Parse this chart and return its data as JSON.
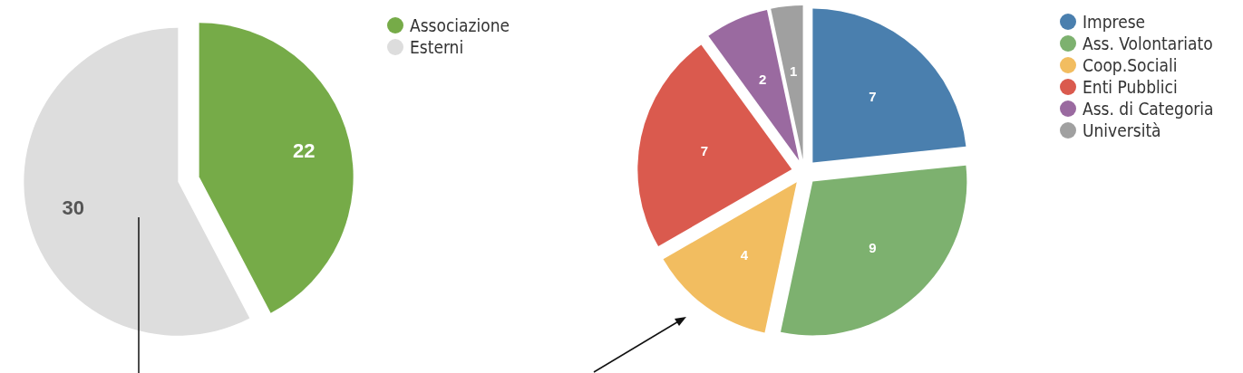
{
  "chart_data": [
    {
      "type": "pie",
      "categories": [
        "Associazione",
        "Esterni"
      ],
      "values": [
        22,
        30
      ],
      "colors": [
        "#76ab48",
        "#dddddd"
      ],
      "data_labels": true,
      "legend": "top right"
    },
    {
      "type": "pie",
      "categories": [
        "Imprese",
        "Ass. Volontariato",
        "Coop.Sociali",
        "Enti Pubblici",
        "Ass. di Categoria",
        "Università"
      ],
      "values": [
        7,
        9,
        4,
        7,
        2,
        1
      ],
      "colors": [
        "#4a7fae",
        "#7db16f",
        "#f2bd60",
        "#da5a4e",
        "#9a6aa0",
        "#a0a0a0"
      ],
      "data_labels": true,
      "legend": "top right"
    }
  ]
}
